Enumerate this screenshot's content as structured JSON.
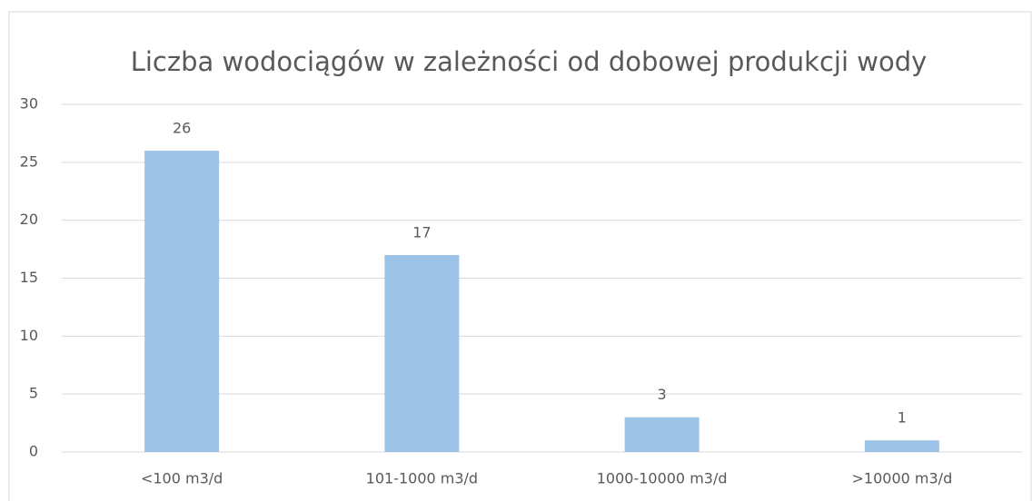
{
  "chart_data": {
    "type": "bar",
    "title": "Liczba wodociągów w zależności od dobowej produkcji wody",
    "categories": [
      "<100 m3/d",
      "101-1000 m3/d",
      "1000-10000 m3/d",
      ">10000 m3/d"
    ],
    "values": [
      26,
      17,
      3,
      1
    ],
    "color": "#9dc3e6",
    "ylim": [
      0,
      30
    ],
    "yticks": [
      0,
      5,
      10,
      15,
      20,
      25,
      30
    ],
    "grid": true
  }
}
